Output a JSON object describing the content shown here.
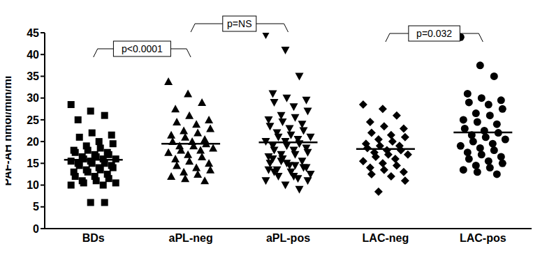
{
  "chart_data": {
    "type": "scatter",
    "y_label": "PAF-AH nmol/min/ml",
    "categories": [
      "BDs",
      "aPL-neg",
      "aPL-pos",
      "LAC-neg",
      "LAC-pos"
    ],
    "markers": [
      "square",
      "triangle",
      "triangle-down",
      "diamond",
      "circle"
    ],
    "color": "#000000",
    "ylim": [
      0,
      45
    ],
    "yticks": [
      0,
      5,
      10,
      15,
      20,
      25,
      30,
      35,
      40,
      45
    ],
    "means": [
      15.8,
      19.5,
      19.8,
      18.3,
      22.1
    ],
    "values": [
      [
        28.5,
        27,
        26,
        25,
        22,
        21.5,
        21,
        20,
        19.5,
        19,
        18.5,
        18,
        18,
        17.5,
        17.5,
        17,
        17,
        16.5,
        16.5,
        16,
        16,
        16,
        15.5,
        15.5,
        15,
        15,
        15,
        14.5,
        14.5,
        14,
        14,
        13.5,
        13.5,
        13,
        13,
        12.5,
        12,
        12,
        11.5,
        11,
        11,
        10.5,
        10.5,
        10,
        10,
        6,
        6
      ],
      [
        33.8,
        31,
        29,
        27.5,
        26,
        25,
        24.5,
        24,
        23,
        22.5,
        22,
        21.5,
        21,
        20.5,
        20,
        20,
        19.5,
        19,
        19,
        18.5,
        18,
        18,
        17.5,
        17,
        16.5,
        16,
        15.5,
        15,
        14.5,
        14,
        13.5,
        13,
        12.5,
        12,
        11.5,
        11
      ],
      [
        44.5,
        41,
        35,
        31,
        30,
        29.5,
        29,
        28,
        27,
        26,
        25.5,
        25,
        24.5,
        24,
        23.5,
        23,
        22.5,
        22,
        21.5,
        21,
        21,
        20.5,
        20,
        20,
        19.5,
        19,
        19,
        18.5,
        18,
        18,
        17.5,
        17,
        17,
        16.5,
        16,
        15.5,
        15,
        14.5,
        14,
        13.5,
        13,
        12.5,
        12,
        11.5,
        11,
        10,
        9,
        16,
        15,
        14,
        13,
        12,
        11,
        15.5,
        14.5,
        13.5
      ],
      [
        28.5,
        27.5,
        26,
        24.5,
        23.5,
        23,
        22,
        21.5,
        21,
        20.5,
        20,
        19.5,
        19,
        19,
        18.5,
        18,
        18,
        17.5,
        17,
        17,
        16.5,
        16,
        15.5,
        15,
        14.5,
        14,
        13.5,
        13,
        12.5,
        12,
        11,
        8.5
      ],
      [
        44,
        37.5,
        35,
        31,
        30,
        29.5,
        29,
        28.5,
        27.5,
        26.5,
        26,
        25,
        24.5,
        24,
        23,
        22.5,
        22,
        21.5,
        21,
        20.5,
        20,
        19.5,
        19,
        18.5,
        18,
        17.5,
        17,
        16.5,
        16,
        15.5,
        15,
        14.5,
        14,
        13.5,
        13,
        12.5
      ]
    ],
    "annotations": [
      {
        "text": "p<0.0001",
        "from": "BDs",
        "to": "aPL-neg"
      },
      {
        "text": "p=NS",
        "from": "aPL-neg",
        "to": "aPL-pos"
      },
      {
        "text": "p=0.032",
        "from": "LAC-neg",
        "to": "LAC-pos"
      }
    ]
  }
}
